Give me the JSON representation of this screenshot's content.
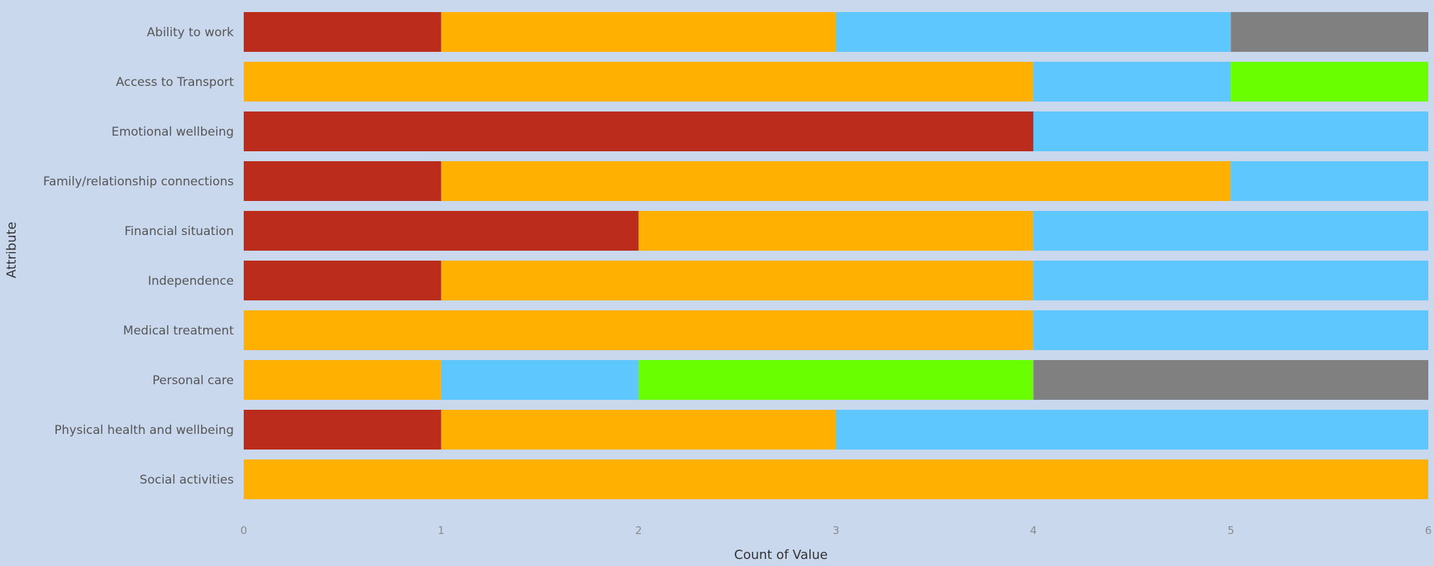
{
  "chart_data": {
    "type": "bar",
    "orientation": "horizontal",
    "stacked": true,
    "xlabel": "Count of Value",
    "ylabel": "Attribute",
    "xlim": [
      0,
      6
    ],
    "xticks": [
      "0",
      "1",
      "2",
      "3",
      "4",
      "5",
      "6"
    ],
    "grid": false,
    "legend": "none",
    "categories": [
      "Ability to work",
      "Access to Transport",
      "Emotional wellbeing",
      "Family/relationship connections",
      "Financial situation",
      "Independence",
      "Medical treatment",
      "Personal care",
      "Physical health and wellbeing",
      "Social activities"
    ],
    "series": [
      {
        "color": "#bb2c1c",
        "values": [
          1,
          0,
          4,
          1,
          2,
          1,
          0,
          0,
          1,
          0
        ]
      },
      {
        "color": "#ffb000",
        "values": [
          2,
          4,
          0,
          4,
          2,
          3,
          4,
          1,
          2,
          6
        ]
      },
      {
        "color": "#5ec8fe",
        "values": [
          2,
          1,
          2,
          1,
          2,
          2,
          2,
          1,
          3,
          0
        ]
      },
      {
        "color": "#6aff00",
        "values": [
          0,
          1,
          0,
          0,
          0,
          0,
          0,
          2,
          0,
          0
        ]
      },
      {
        "color": "#808080",
        "values": [
          1,
          0,
          0,
          0,
          0,
          0,
          0,
          2,
          0,
          0
        ]
      }
    ]
  }
}
